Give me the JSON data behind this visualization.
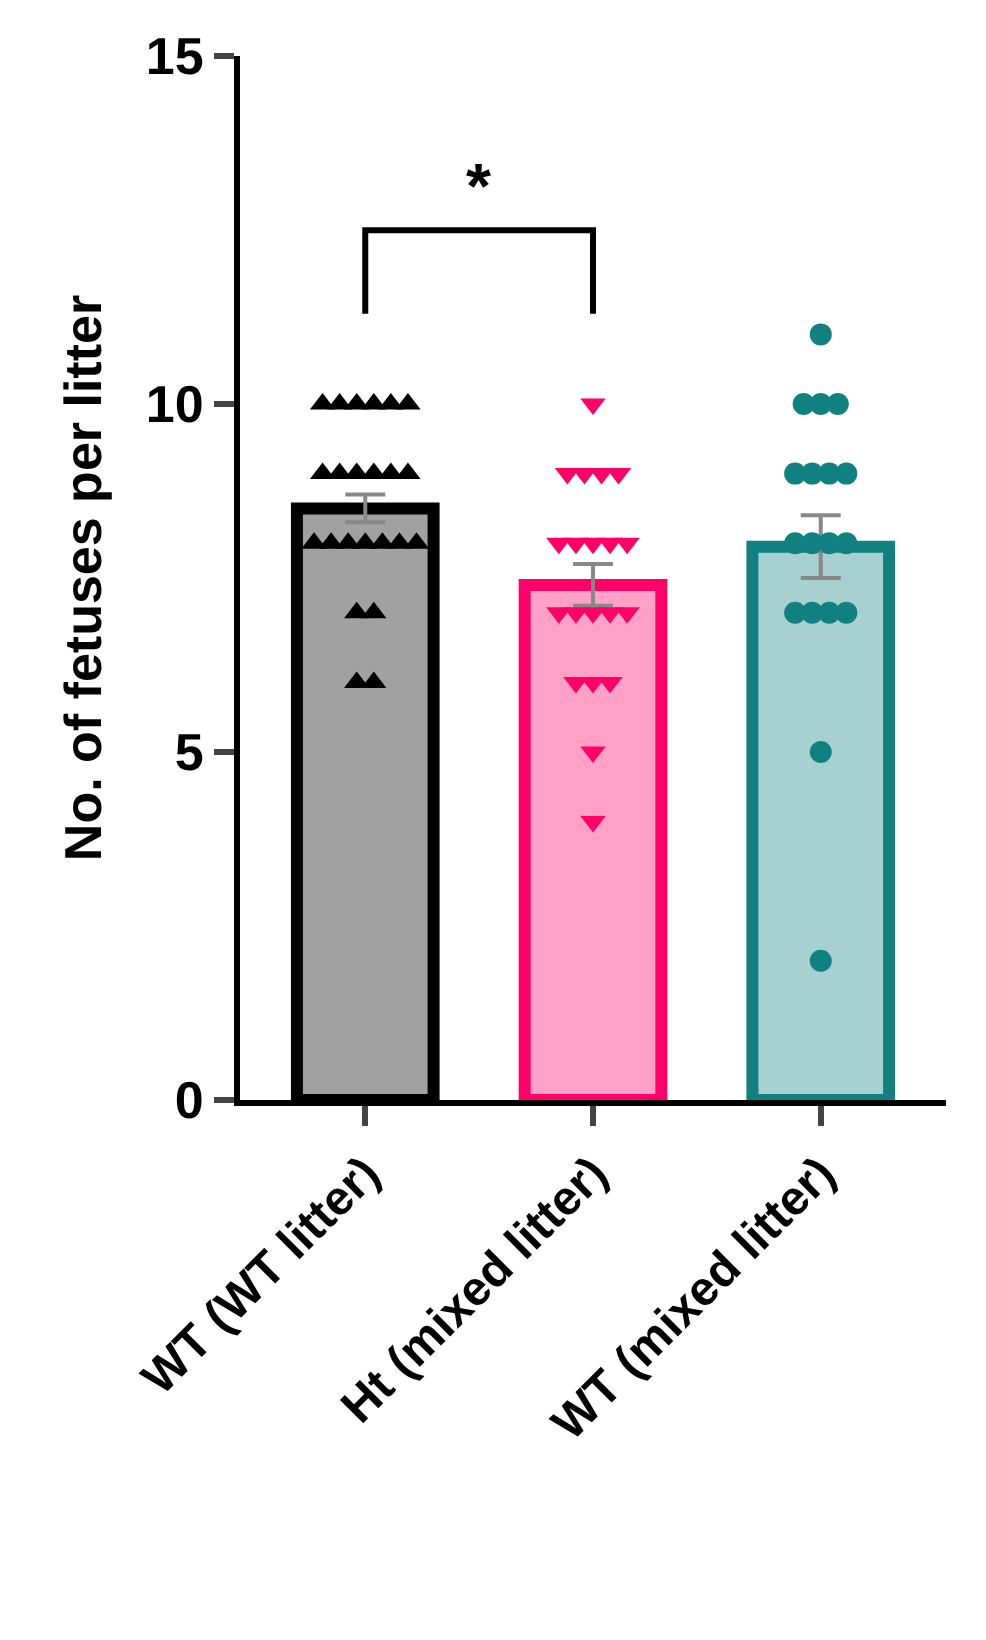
{
  "chart_data": {
    "type": "bar",
    "ylabel": "No. of fetuses per litter",
    "categories": [
      "WT (WT litter)",
      "Ht (mixed litter)",
      "WT (mixed litter)"
    ],
    "ylim": [
      0,
      15
    ],
    "yticks": [
      0,
      5,
      10,
      15
    ],
    "annotations": [
      "*"
    ],
    "series": [
      {
        "colors": [
          "#000000",
          "#ff0066",
          "#118080"
        ],
        "values": [
          8.5,
          7.4,
          7.95
        ],
        "errors": [
          0.2,
          0.3,
          0.45
        ]
      },
      {
        "type": "scatter",
        "color": "#000000",
        "marker": "triangle",
        "x": [
          "WT (WT litter)",
          "WT (WT litter)",
          "WT (WT litter)",
          "WT (WT litter)",
          "WT (WT litter)",
          "WT (WT litter)",
          "WT (WT litter)",
          "WT (WT litter)",
          "WT (WT litter)",
          "WT (WT litter)",
          "WT (WT litter)",
          "WT (WT litter)",
          "WT (WT litter)",
          "WT (WT litter)",
          "WT (WT litter)",
          "WT (WT litter)",
          "WT (WT litter)",
          "WT (WT litter)",
          "WT (WT litter)",
          "WT (WT litter)",
          "WT (WT litter)",
          "WT (WT litter)",
          "WT (WT litter)"
        ],
        "values": [
          10,
          10,
          10,
          10,
          10,
          10,
          9,
          9,
          9,
          9,
          9,
          9,
          8,
          8,
          8,
          8,
          8,
          8,
          8,
          7,
          7,
          6,
          6
        ]
      },
      {
        "type": "scatter",
        "color": "#ff0066",
        "marker": "triangle-down",
        "x": [
          "Ht (mixed litter)",
          "Ht (mixed litter)",
          "Ht (mixed litter)",
          "Ht (mixed litter)",
          "Ht (mixed litter)",
          "Ht (mixed litter)",
          "Ht (mixed litter)",
          "Ht (mixed litter)",
          "Ht (mixed litter)",
          "Ht (mixed litter)",
          "Ht (mixed litter)",
          "Ht (mixed litter)",
          "Ht (mixed litter)",
          "Ht (mixed litter)",
          "Ht (mixed litter)",
          "Ht (mixed litter)",
          "Ht (mixed litter)",
          "Ht (mixed litter)",
          "Ht (mixed litter)",
          "Ht (mixed litter)"
        ],
        "values": [
          10,
          9,
          9,
          9,
          9,
          8,
          8,
          8,
          8,
          8,
          7,
          7,
          7,
          7,
          7,
          6,
          6,
          6,
          5,
          4
        ]
      },
      {
        "type": "scatter",
        "color": "#118080",
        "marker": "circle",
        "x": [
          "WT (mixed litter)",
          "WT (mixed litter)",
          "WT (mixed litter)",
          "WT (mixed litter)",
          "WT (mixed litter)",
          "WT (mixed litter)",
          "WT (mixed litter)",
          "WT (mixed litter)",
          "WT (mixed litter)",
          "WT (mixed litter)",
          "WT (mixed litter)",
          "WT (mixed litter)",
          "WT (mixed litter)",
          "WT (mixed litter)",
          "WT (mixed litter)",
          "WT (mixed litter)",
          "WT (mixed litter)",
          "WT (mixed litter)"
        ],
        "values": [
          11,
          10,
          10,
          10,
          9,
          9,
          9,
          9,
          8,
          8,
          8,
          8,
          7,
          7,
          7,
          7,
          5,
          2
        ]
      }
    ]
  }
}
